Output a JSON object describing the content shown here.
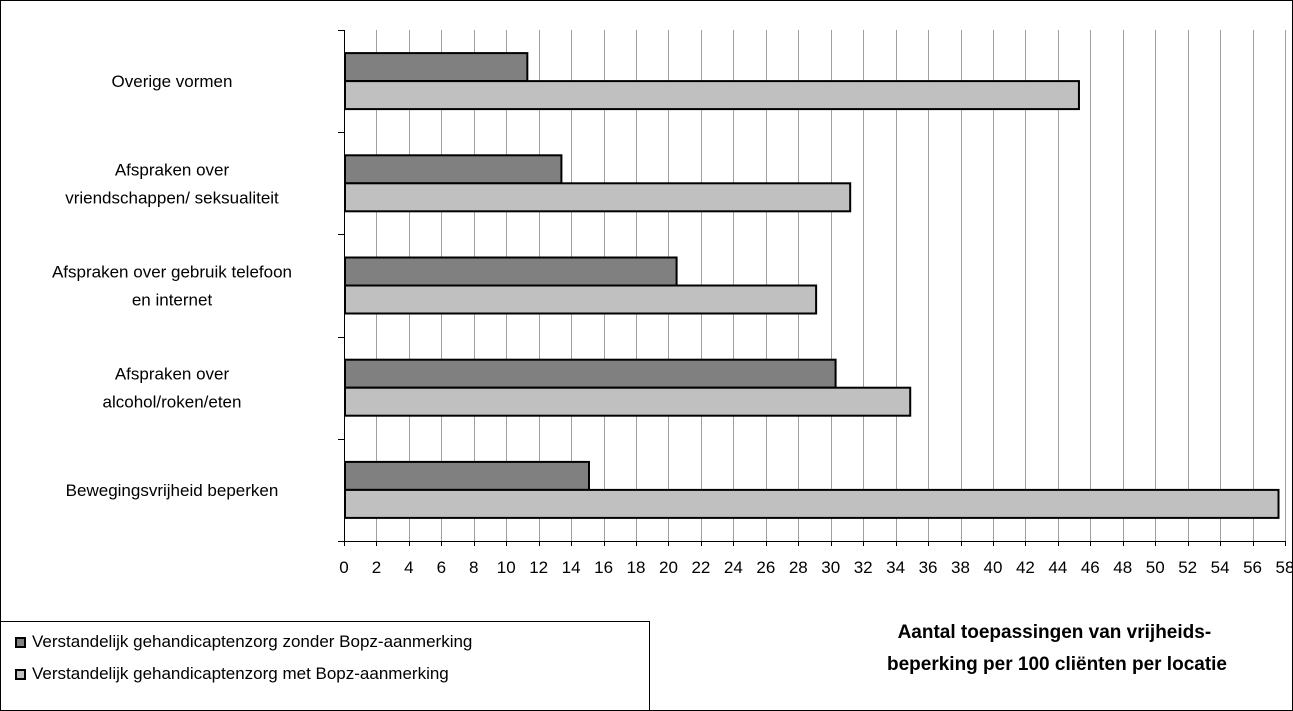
{
  "chart_data": {
    "type": "bar",
    "orientation": "horizontal",
    "categories": [
      [
        "Overige vormen"
      ],
      [
        "Afspraken over",
        "vriendschappen/ seksualiteit"
      ],
      [
        "Afspraken over gebruik telefoon",
        "en internet"
      ],
      [
        "Afspraken over",
        "alcohol/roken/eten"
      ],
      [
        "Bewegingsvrijheid beperken"
      ]
    ],
    "series": [
      {
        "name": "Verstandelijk gehandicaptenzorg zonder Bopz-aanmerking",
        "color": "#808080",
        "values": [
          11.3,
          13.4,
          20.5,
          30.3,
          15.1
        ]
      },
      {
        "name": "Verstandelijk gehandicaptenzorg met Bopz-aanmerking",
        "color": "#c0c0c0",
        "values": [
          45.3,
          31.2,
          29.1,
          34.9,
          57.6
        ]
      }
    ],
    "xlim": [
      0,
      58
    ],
    "xtick_step": 2,
    "xlabel": [
      "Aantal toepassingen van vrijheids-",
      "beperking per 100 cliënten per locatie"
    ],
    "grid": "vertical",
    "legend_position": "bottom-left"
  },
  "legend": {
    "item1": "Verstandelijk gehandicaptenzorg zonder Bopz-aanmerking",
    "item2": "Verstandelijk gehandicaptenzorg met Bopz-aanmerking"
  }
}
